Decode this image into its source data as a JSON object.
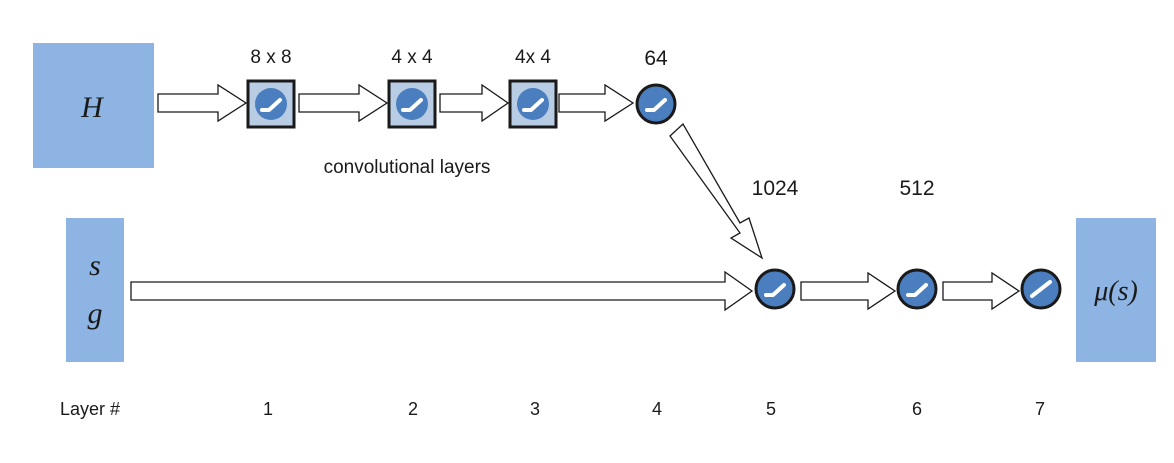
{
  "inputs": {
    "H": "H",
    "s": "s",
    "g": "g",
    "output": "μ(s)"
  },
  "conv_layers": {
    "caption": "convolutional layers",
    "sizes": [
      "8 x 8",
      "4 x 4",
      "4x 4",
      "64"
    ]
  },
  "fc_sizes": [
    "1024",
    "512"
  ],
  "layer_row": {
    "label": "Layer #",
    "numbers": [
      "1",
      "2",
      "3",
      "4",
      "5",
      "6",
      "7"
    ]
  },
  "colors": {
    "input_fill": "#8eb4e3",
    "node_fill": "#4a7ebf",
    "box_fill": "#b8cce4",
    "stroke": "#1a1a1a"
  }
}
